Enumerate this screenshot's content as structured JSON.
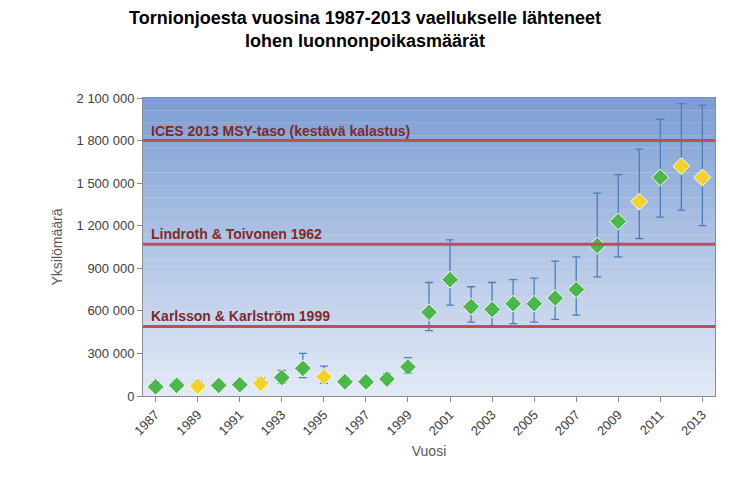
{
  "chart_data": {
    "type": "scatter",
    "title": "Tornionjoesta vuosina 1987-2013 vaellukselle lähteneet\nlohen luonnonpoikasmäärät",
    "x_label": "Vuosi",
    "y_label": "Yksilömäärä",
    "x": [
      1987,
      1988,
      1989,
      1990,
      1991,
      1992,
      1993,
      1994,
      1995,
      1996,
      1997,
      1998,
      1999,
      2000,
      2001,
      2002,
      2003,
      2004,
      2005,
      2006,
      2007,
      2008,
      2009,
      2010,
      2011,
      2012,
      2013
    ],
    "values": [
      65000,
      75000,
      70000,
      75000,
      80000,
      90000,
      130000,
      195000,
      135000,
      100000,
      100000,
      120000,
      205000,
      590000,
      820000,
      630000,
      610000,
      650000,
      650000,
      690000,
      750000,
      1060000,
      1230000,
      1370000,
      1540000,
      1620000,
      1540000
    ],
    "lower": [
      40000,
      50000,
      45000,
      55000,
      55000,
      60000,
      90000,
      130000,
      90000,
      70000,
      70000,
      85000,
      160000,
      460000,
      640000,
      520000,
      490000,
      510000,
      520000,
      540000,
      570000,
      840000,
      980000,
      1110000,
      1260000,
      1310000,
      1200000
    ],
    "upper": [
      100000,
      110000,
      105000,
      105000,
      110000,
      130000,
      180000,
      300000,
      210000,
      135000,
      135000,
      160000,
      270000,
      800000,
      1100000,
      770000,
      800000,
      820000,
      830000,
      950000,
      980000,
      1430000,
      1560000,
      1740000,
      1950000,
      2060000,
      2050000
    ],
    "colors": [
      "#4cb84c",
      "#4cb84c",
      "#f2d22e",
      "#4cb84c",
      "#4cb84c",
      "#f2d22e",
      "#4cb84c",
      "#4cb84c",
      "#f2d22e",
      "#4cb84c",
      "#4cb84c",
      "#4cb84c",
      "#4cb84c",
      "#4cb84c",
      "#4cb84c",
      "#4cb84c",
      "#4cb84c",
      "#4cb84c",
      "#4cb84c",
      "#4cb84c",
      "#4cb84c",
      "#4cb84c",
      "#4cb84c",
      "#f2d22e",
      "#4cb84c",
      "#f2d22e",
      "#f2d22e"
    ],
    "marker": "diamond",
    "error_color": "#4a7ebb",
    "xlim": [
      1986.4,
      2013.6
    ],
    "xticks": [
      1987,
      1989,
      1991,
      1993,
      1995,
      1997,
      1999,
      2001,
      2003,
      2005,
      2007,
      2009,
      2011,
      2013
    ],
    "ylim": [
      0,
      2100000
    ],
    "yticks": [
      0,
      {
        "value": 300000,
        "label": "300 000"
      },
      {
        "value": 600000,
        "label": "600 000"
      },
      {
        "value": 900000,
        "label": "900 000"
      },
      {
        "value": 1200000,
        "label": "1 200 000"
      },
      {
        "value": 1500000,
        "label": "1 500 000"
      },
      {
        "value": 1800000,
        "label": "1 800 000"
      },
      {
        "value": 2100000,
        "label": "2 100 000"
      }
    ],
    "grid": false,
    "annotations": [
      {
        "y": 1800000,
        "text": "ICES 2013 MSY-taso (kestävä kalastus)",
        "color": "#c0504d"
      },
      {
        "y": 1070000,
        "text": "Lindroth & Toivonen 1962",
        "color": "#c0504d"
      },
      {
        "y": 490000,
        "text": "Karlsson & Karlström 1999",
        "color": "#c0504d"
      }
    ]
  }
}
